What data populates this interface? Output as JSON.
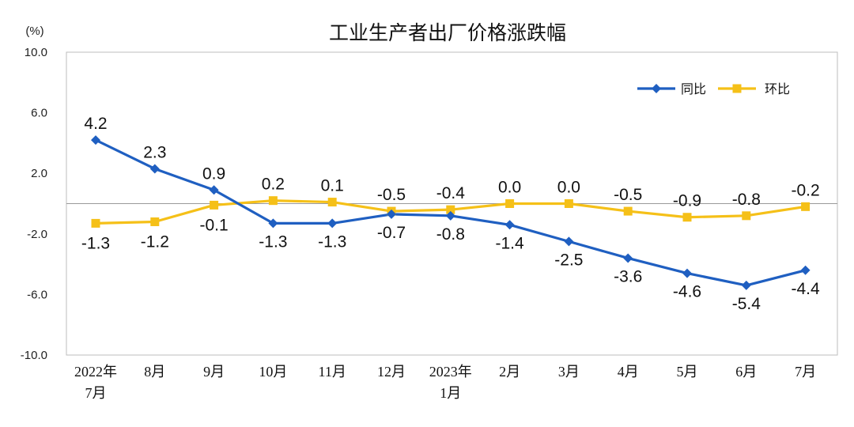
{
  "chart_data": {
    "type": "line",
    "title": "工业生产者出厂价格涨跌幅",
    "ylabel": "(%)",
    "xlabel": "",
    "ylim": [
      -10,
      10
    ],
    "yticks": [
      "10.0",
      "6.0",
      "2.0",
      "-2.0",
      "-6.0",
      "-10.0"
    ],
    "ytick_values": [
      10,
      6,
      2,
      -2,
      -6,
      -10
    ],
    "categories": [
      [
        "2022年",
        "7月"
      ],
      [
        "8月"
      ],
      [
        "9月"
      ],
      [
        "10月"
      ],
      [
        "11月"
      ],
      [
        "12月"
      ],
      [
        "2023年",
        "1月"
      ],
      [
        "2月"
      ],
      [
        "3月"
      ],
      [
        "4月"
      ],
      [
        "5月"
      ],
      [
        "6月"
      ],
      [
        "7月"
      ]
    ],
    "legend_position": "top-right",
    "grid": false,
    "series": [
      {
        "name": "同比",
        "color": "#1f5fc1",
        "marker": "diamond",
        "values": [
          4.2,
          2.3,
          0.9,
          -1.3,
          -1.3,
          -0.7,
          -0.8,
          -1.4,
          -2.5,
          -3.6,
          -4.6,
          -5.4,
          -4.4
        ],
        "labels": [
          "4.2",
          "2.3",
          "0.9",
          "-1.3",
          "-1.3",
          "-0.7",
          "-0.8",
          "-1.4",
          "-2.5",
          "-3.6",
          "-4.6",
          "-5.4",
          "-4.4"
        ]
      },
      {
        "name": "环比",
        "color": "#f5c018",
        "marker": "square",
        "values": [
          -1.3,
          -1.2,
          -0.1,
          0.2,
          0.1,
          -0.5,
          -0.4,
          0.0,
          0.0,
          -0.5,
          -0.9,
          -0.8,
          -0.2
        ],
        "labels": [
          "-1.3",
          "-1.2",
          "-0.1",
          "0.2",
          "0.1",
          "-0.5",
          "-0.4",
          "0.0",
          "0.0",
          "-0.5",
          "-0.9",
          "-0.8",
          "-0.2"
        ]
      }
    ]
  }
}
